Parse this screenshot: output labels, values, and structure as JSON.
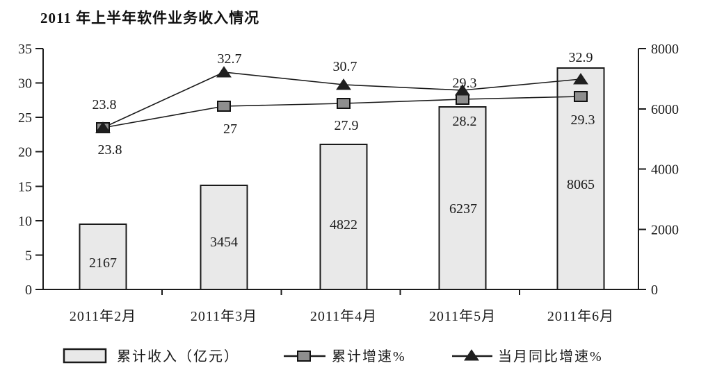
{
  "title": "2011 年上半年软件业务收入情况",
  "chart_data": {
    "type": "bar+line combo",
    "title": "2011 年上半年软件业务收入情况",
    "categories": [
      "2011年2月",
      "2011年3月",
      "2011年4月",
      "2011年5月",
      "2011年6月"
    ],
    "series": [
      {
        "name": "累计收入（亿元）",
        "type": "bar",
        "axis": "right",
        "values": [
          2167,
          3454,
          4822,
          6237,
          8065
        ]
      },
      {
        "name": "累计增速%",
        "type": "line",
        "marker": "square",
        "axis": "left",
        "values": [
          23.8,
          27,
          27.9,
          28.2,
          29.3
        ]
      },
      {
        "name": "当月同比增速%",
        "type": "line",
        "marker": "triangle",
        "axis": "left",
        "values": [
          23.8,
          32.7,
          30.7,
          29.3,
          32.9
        ]
      }
    ],
    "left_axis": {
      "min": 0,
      "max": 35,
      "step": 5,
      "ticks": [
        "35",
        "30",
        "25",
        "20",
        "15",
        "10",
        "5",
        "0"
      ]
    },
    "right_axis": {
      "min": 0,
      "max": 8000,
      "step": 2000,
      "ticks": [
        "8000",
        "6000",
        "4000",
        "2000",
        "0"
      ]
    },
    "legend": [
      "累计收入（亿元）",
      "累计增速%",
      "当月同比增速%"
    ],
    "grid": false,
    "legend_position": "bottom"
  },
  "colors": {
    "background": "#ffffff",
    "axis": "#1a1a1a",
    "text": "#1a1a1a",
    "bar_fill": "#e9e9e9",
    "bar_stroke": "#1a1a1a",
    "line": "#1a1a1a",
    "square_marker_fill": "#8e8e8e",
    "square_marker_stroke": "#111111",
    "triangle_marker_fill": "#1f1f1f"
  }
}
